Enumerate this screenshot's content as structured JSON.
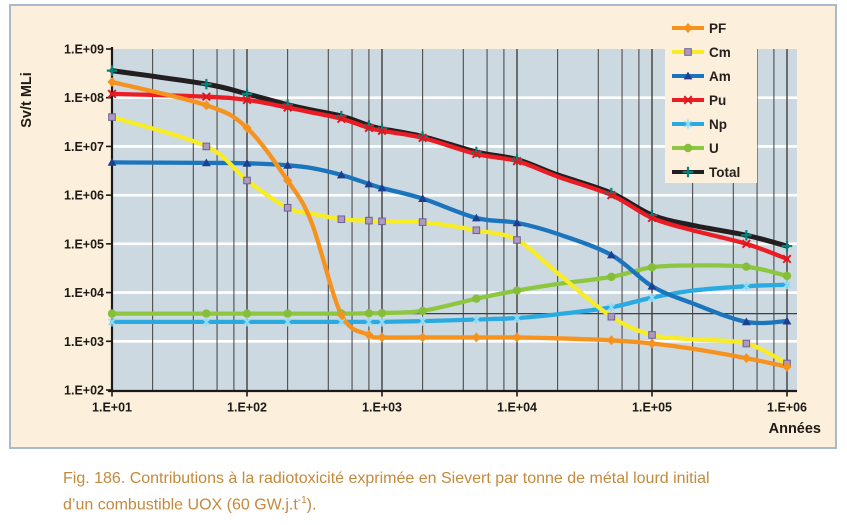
{
  "colors": {
    "page_bg": "#ffffff",
    "panel_bg": "#fcefdc",
    "panel_border": "#a9bac9",
    "plot_bg": "#cdd9e1",
    "grid_dark": "#3f3f3f",
    "grid_white": "#ffffff",
    "axis": "#1a1a1a",
    "tick_text": "#1f1a16",
    "caption": "#c5893c"
  },
  "caption": {
    "line1": "Fig. 186. Contributions à la radiotoxicité exprimée en Sievert par tonne de métal lourd initial",
    "line2_pre": "d’un combustible UOX (60 GW.j.t",
    "line2_sup": "-1",
    "line2_post": ")."
  },
  "chart_data": {
    "type": "line",
    "x_scale": "log",
    "y_scale": "log",
    "xlabel": "Années",
    "ylabel": "Sv/t MLi",
    "x_range": [
      10,
      1000000
    ],
    "y_range": [
      100,
      1000000000
    ],
    "x_ticks": {
      "labels": [
        "1.E+01",
        "1.E+02",
        "1.E+03",
        "1.E+04",
        "1.E+05",
        "1.E+06"
      ],
      "values": [
        10,
        100,
        1000,
        10000,
        100000,
        1000000
      ]
    },
    "y_ticks": {
      "labels": [
        "1.E+09",
        "1.E+08",
        "1.E+07",
        "1.E+06",
        "1.E+05",
        "1.E+04",
        "1.E+03",
        "1.E+02"
      ],
      "values": [
        1000000000.0,
        100000000.0,
        10000000.0,
        1000000.0,
        100000.0,
        10000.0,
        1000.0,
        100.0
      ]
    },
    "x_minor_gridline_multiples": [
      2,
      4,
      6,
      8
    ],
    "grid": {
      "horizontal": "white-major-only",
      "vertical": "dark-major-and-minor"
    },
    "reference_line": {
      "value": 3700,
      "color": "#3f3f3f"
    },
    "x": [
      10,
      50,
      100,
      200,
      300,
      500,
      800,
      1000,
      2000,
      5000,
      10000,
      20000,
      50000,
      100000,
      200000,
      500000,
      1000000
    ],
    "marker_skip_x": [
      300,
      20000,
      200000
    ],
    "series": [
      {
        "name": "PF",
        "color": "#f6921e",
        "marker": "diamond",
        "marker_color": "#f6921e",
        "values": [
          210000000.0,
          70000000.0,
          24000000.0,
          2000000.0,
          280000.0,
          3500.0,
          1350.0,
          1200.0,
          1200.0,
          1200.0,
          1200.0,
          1150.0,
          1050.0,
          900.0,
          700.0,
          450.0,
          300.0
        ]
      },
      {
        "name": "Cm",
        "color": "#f7ec25",
        "marker": "square",
        "marker_color": "#aa9bc5",
        "marker_stroke": "#6f5f92",
        "values": [
          40000000.0,
          10000000.0,
          2000000.0,
          550000.0,
          420000.0,
          320000.0,
          300000.0,
          290000.0,
          280000.0,
          190000.0,
          120000.0,
          25000.0,
          3200.0,
          1350.0,
          1100.0,
          900.0,
          350.0
        ]
      },
      {
        "name": "Am",
        "color": "#1c75bc",
        "marker": "triangle",
        "marker_color": "#1e3e90",
        "values": [
          4700000.0,
          4600000.0,
          4500000.0,
          4100000.0,
          3600000.0,
          2600000.0,
          1700000.0,
          1400000.0,
          850000.0,
          340000.0,
          270000.0,
          160000.0,
          59000.0,
          13500.0,
          6000.0,
          2500.0,
          2600.0
        ]
      },
      {
        "name": "Pu",
        "color": "#ec1c24",
        "marker": "x",
        "marker_color": "#e0161d",
        "values": [
          120000000.0,
          105000000.0,
          90000000.0,
          63000000.0,
          50000000.0,
          37000000.0,
          24000000.0,
          21000000.0,
          15000000.0,
          7000000.0,
          5000000.0,
          2400000.0,
          1000000.0,
          340000.0,
          190000.0,
          100000.0,
          49000.0
        ]
      },
      {
        "name": "Np",
        "color": "#29abe2",
        "marker": "asterisk",
        "marker_color": "#8edcf5",
        "values": [
          2500.0,
          2500.0,
          2500.0,
          2500.0,
          2500.0,
          2500.0,
          2500.0,
          2500.0,
          2600.0,
          2800.0,
          3000.0,
          3600.0,
          5000.0,
          7900.0,
          11000.0,
          13500.0,
          14500.0
        ]
      },
      {
        "name": "U",
        "color": "#8dc63f",
        "marker": "circle",
        "marker_color": "#86be3a",
        "values": [
          3700.0,
          3700.0,
          3700.0,
          3700.0,
          3700.0,
          3700.0,
          3750.0,
          3800.0,
          4200.0,
          7500.0,
          11000.0,
          15000.0,
          21000.0,
          33000.0,
          36000.0,
          34000.0,
          22000.0
        ]
      },
      {
        "name": "Total",
        "color": "#231f20",
        "marker": "plus",
        "marker_color": "#00857c",
        "values": [
          360000000.0,
          190000000.0,
          120000000.0,
          72000000.0,
          56000000.0,
          42000000.0,
          27000000.0,
          23000000.0,
          16000000.0,
          7700000.0,
          5400000.0,
          2600000.0,
          1100000.0,
          390000.0,
          240000.0,
          150000.0,
          90000.0
        ]
      }
    ],
    "draw_order": [
      "Total",
      "Pu",
      "U",
      "Np",
      "Am",
      "Cm",
      "PF"
    ],
    "legend": {
      "position": "top-right",
      "labels": [
        "PF",
        "Cm",
        "Am",
        "Pu",
        "Np",
        "U",
        "Total"
      ]
    }
  }
}
